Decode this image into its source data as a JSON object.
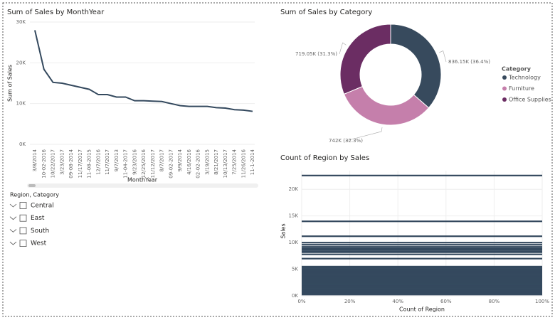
{
  "chart_data": [
    {
      "type": "line",
      "title": "Sum of Sales by MonthYear",
      "x_label": "MonthYear",
      "y_label": "Sum of Sales",
      "categories": [
        "3/8/2014",
        "10-02-2016",
        "10/22/2017",
        "3/23/2017",
        "09-08-2014",
        "11/17/2017",
        "11-08-2015",
        "12/7/2016",
        "11/7/2017",
        "9/7/2013",
        "11-04-2017",
        "9/23/2016",
        "12/25/2016",
        "11/12/2017",
        "8/7/2017",
        "09-02-2017",
        "9/9/2014",
        "4/16/2016",
        "02-02-2016",
        "3/19/2015",
        "8/21/2017",
        "10/13/2017",
        "7/25/2014",
        "11/26/2016",
        "11-1-2014"
      ],
      "values": [
        28000,
        18400,
        15200,
        15000,
        14500,
        14000,
        13500,
        12200,
        12200,
        11600,
        11600,
        10700,
        10700,
        10600,
        10500,
        10000,
        9500,
        9300,
        9300,
        9300,
        9000,
        8900,
        8500,
        8400,
        8100
      ],
      "color": "#34495e",
      "ylim": [
        0,
        30000
      ],
      "yticks": [
        {
          "value": 0,
          "label": "0K"
        },
        {
          "value": 10000,
          "label": "10K"
        },
        {
          "value": 20000,
          "label": "20K"
        },
        {
          "value": 30000,
          "label": "30K"
        }
      ]
    },
    {
      "type": "pie",
      "donut": true,
      "title": "Sum of Sales by Category",
      "legend_title": "Category",
      "legend": "right",
      "categories": [
        "Technology",
        "Furniture",
        "Office Supplies"
      ],
      "values": [
        836150,
        742000,
        719050
      ],
      "value_labels": [
        "836.15K (36.4%)",
        "742K (32.3%)",
        "719.05K (31.3%)"
      ],
      "colors": [
        "#374a5d",
        "#c57fab",
        "#6b2d63"
      ]
    },
    {
      "type": "bar",
      "orientation": "horizontal",
      "title": "Count of Region by Sales",
      "x_label": "Count of Region",
      "y_label": "Sales",
      "y": [
        22600,
        14000,
        11200,
        10000,
        9600,
        9200,
        8900,
        8700,
        8400,
        8200,
        7800,
        7000,
        5500,
        5250,
        5000,
        4750,
        4500,
        4250,
        4000,
        3750,
        3500,
        3250,
        3000,
        2750,
        2500,
        2250,
        2000,
        1750,
        1500,
        1250,
        1000,
        750,
        500,
        250
      ],
      "values": [
        100,
        100,
        100,
        100,
        100,
        100,
        100,
        100,
        100,
        100,
        100,
        100,
        100,
        100,
        100,
        100,
        100,
        100,
        100,
        100,
        100,
        100,
        100,
        100,
        100,
        100,
        100,
        100,
        100,
        100,
        100,
        100,
        100,
        100
      ],
      "color": "#34495e",
      "xlim": [
        0,
        100
      ],
      "xticks": [
        {
          "value": 0,
          "label": "0%"
        },
        {
          "value": 20,
          "label": "20%"
        },
        {
          "value": 40,
          "label": "40%"
        },
        {
          "value": 60,
          "label": "60%"
        },
        {
          "value": 80,
          "label": "80%"
        },
        {
          "value": 100,
          "label": "100%"
        }
      ],
      "ylim": [
        0,
        23500
      ],
      "yticks": [
        {
          "value": 0,
          "label": "0K"
        },
        {
          "value": 5000,
          "label": "5K"
        },
        {
          "value": 10000,
          "label": "10K"
        },
        {
          "value": 15000,
          "label": "15K"
        },
        {
          "value": 20000,
          "label": "20K"
        }
      ]
    }
  ],
  "slicer": {
    "title": "Region, Category",
    "items": [
      "Central",
      "East",
      "South",
      "West"
    ]
  }
}
